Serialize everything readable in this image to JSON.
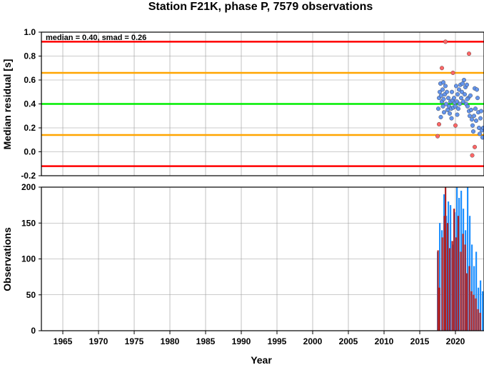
{
  "chart_data": [
    {
      "type": "scatter",
      "title": "Station F21K, phase P, 7579 observations",
      "xlabel": "",
      "ylabel": "Median residual [s]",
      "xlim": [
        1962,
        2024
      ],
      "ylim": [
        -0.2,
        1.0
      ],
      "yticks": [
        "-0.2",
        "0.0",
        "0.2",
        "0.4",
        "0.6",
        "0.8",
        "1.0"
      ],
      "annotation": "median = 0.40, smad = 0.26",
      "grid": true,
      "reference_lines": [
        {
          "y": 0.92,
          "color": "#ff0000"
        },
        {
          "y": 0.66,
          "color": "#ffa500"
        },
        {
          "y": 0.4,
          "color": "#00ee00"
        },
        {
          "y": 0.14,
          "color": "#ffa500"
        },
        {
          "y": -0.12,
          "color": "#ff0000"
        }
      ],
      "series": [
        {
          "color": "#6495ed",
          "points": [
            [
              2017.6,
              0.36
            ],
            [
              2017.7,
              0.45
            ],
            [
              2017.8,
              0.5
            ],
            [
              2017.9,
              0.57
            ],
            [
              2018.0,
              0.47
            ],
            [
              2018.1,
              0.42
            ],
            [
              2018.2,
              0.52
            ],
            [
              2018.3,
              0.58
            ],
            [
              2018.35,
              0.44
            ],
            [
              2018.4,
              0.33
            ],
            [
              2018.5,
              0.48
            ],
            [
              2018.6,
              0.55
            ],
            [
              2018.7,
              0.4
            ],
            [
              2018.8,
              0.5
            ],
            [
              2018.9,
              0.35
            ],
            [
              2019.0,
              0.45
            ],
            [
              2019.1,
              0.38
            ],
            [
              2019.2,
              0.32
            ],
            [
              2019.3,
              0.42
            ],
            [
              2019.4,
              0.36
            ],
            [
              2019.5,
              0.5
            ],
            [
              2019.6,
              0.43
            ],
            [
              2019.7,
              0.37
            ],
            [
              2019.8,
              0.45
            ],
            [
              2019.9,
              0.41
            ],
            [
              2020.0,
              0.38
            ],
            [
              2020.1,
              0.55
            ],
            [
              2020.2,
              0.42
            ],
            [
              2020.3,
              0.48
            ],
            [
              2020.4,
              0.36
            ],
            [
              2020.5,
              0.52
            ],
            [
              2020.6,
              0.4
            ],
            [
              2020.7,
              0.56
            ],
            [
              2020.8,
              0.45
            ],
            [
              2020.9,
              0.5
            ],
            [
              2021.0,
              0.57
            ],
            [
              2021.1,
              0.42
            ],
            [
              2021.2,
              0.6
            ],
            [
              2021.3,
              0.48
            ],
            [
              2021.4,
              0.54
            ],
            [
              2021.5,
              0.4
            ],
            [
              2021.6,
              0.56
            ],
            [
              2021.7,
              0.38
            ],
            [
              2021.8,
              0.45
            ],
            [
              2021.9,
              0.34
            ],
            [
              2022.0,
              0.3
            ],
            [
              2022.1,
              0.47
            ],
            [
              2022.2,
              0.35
            ],
            [
              2022.3,
              0.27
            ],
            [
              2022.4,
              0.22
            ],
            [
              2022.5,
              0.17
            ],
            [
              2022.6,
              0.3
            ],
            [
              2022.7,
              0.53
            ],
            [
              2022.8,
              0.36
            ],
            [
              2022.9,
              0.26
            ],
            [
              2023.0,
              0.52
            ],
            [
              2023.1,
              0.45
            ],
            [
              2023.2,
              0.33
            ],
            [
              2023.3,
              0.2
            ],
            [
              2023.4,
              0.15
            ],
            [
              2023.5,
              0.28
            ],
            [
              2023.6,
              0.34
            ],
            [
              2023.7,
              0.18
            ],
            [
              2023.8,
              0.12
            ],
            [
              2023.9,
              0.2
            ],
            [
              2017.95,
              0.29
            ],
            [
              2018.25,
              0.38
            ],
            [
              2019.45,
              0.28
            ],
            [
              2020.25,
              0.31
            ],
            [
              2021.65,
              0.44
            ]
          ]
        },
        {
          "color": "#ff6666",
          "points": [
            [
              2017.5,
              0.13
            ],
            [
              2017.7,
              0.23
            ],
            [
              2018.1,
              0.7
            ],
            [
              2018.6,
              0.92
            ],
            [
              2019.65,
              0.66
            ],
            [
              2020.0,
              0.22
            ],
            [
              2021.9,
              0.82
            ],
            [
              2022.35,
              -0.03
            ],
            [
              2022.7,
              0.04
            ]
          ]
        }
      ]
    },
    {
      "type": "bar",
      "title": "",
      "xlabel": "Year",
      "ylabel": "Observations",
      "xlim": [
        1962,
        2024
      ],
      "ylim": [
        0,
        200
      ],
      "xticks": [
        "1965",
        "1970",
        "1975",
        "1980",
        "1985",
        "1990",
        "1995",
        "2000",
        "2005",
        "2010",
        "2015",
        "2020"
      ],
      "yticks": [
        "0",
        "50",
        "100",
        "150",
        "200"
      ],
      "grid": true,
      "series": [
        {
          "color": "#1e90ff",
          "x": [
            2017.5,
            2017.8,
            2018.1,
            2018.4,
            2018.7,
            2019.0,
            2019.3,
            2019.6,
            2019.9,
            2020.2,
            2020.5,
            2020.8,
            2021.1,
            2021.4,
            2021.7,
            2022.0,
            2022.3,
            2022.6,
            2022.9,
            2023.2,
            2023.5,
            2023.8
          ],
          "values": [
            110,
            150,
            140,
            190,
            160,
            180,
            175,
            120,
            165,
            200,
            185,
            195,
            170,
            140,
            200,
            160,
            120,
            90,
            110,
            60,
            70,
            55
          ]
        },
        {
          "color": "#b22222",
          "x": [
            2017.55,
            2017.75,
            2018.15,
            2018.45,
            2018.6,
            2018.9,
            2019.2,
            2019.55,
            2019.8,
            2020.1,
            2020.4,
            2020.75,
            2021.05,
            2021.35,
            2021.6,
            2021.95,
            2022.25,
            2022.55,
            2022.85,
            2023.15,
            2023.45
          ],
          "values": [
            112,
            60,
            130,
            160,
            200,
            150,
            115,
            125,
            170,
            130,
            160,
            110,
            135,
            120,
            80,
            90,
            55,
            50,
            45,
            30,
            25
          ]
        }
      ]
    }
  ]
}
